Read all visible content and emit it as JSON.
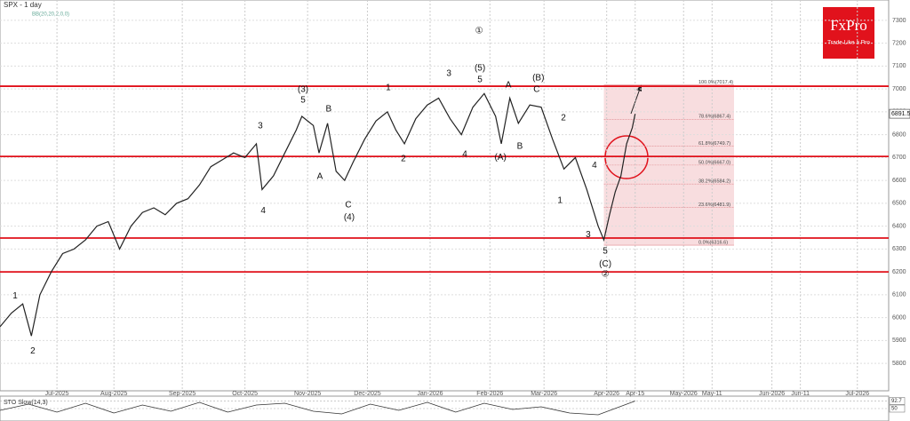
{
  "chart_data": {
    "type": "line",
    "title": "SPX - 1 day",
    "subtitle": "BB(20,20,2,0,0)",
    "brand": "FxPro",
    "tagline": "Trade Like a Pro",
    "series": [
      {
        "name": "SPX",
        "color": "#222222",
        "x": [
          0,
          4,
          8,
          11,
          14,
          18,
          22,
          26,
          30,
          34,
          38,
          42,
          46,
          50,
          54,
          58,
          62,
          66,
          70,
          74,
          78,
          82,
          86,
          90,
          92,
          96,
          100,
          104,
          106,
          110,
          112,
          115,
          118,
          121,
          124,
          128,
          132,
          136,
          139,
          142,
          146,
          150,
          154,
          158,
          162,
          166,
          170,
          174,
          176,
          179,
          182,
          186,
          190,
          194,
          198,
          202,
          206,
          210,
          212,
          214,
          216,
          218,
          220,
          222,
          223
        ],
        "values": [
          5960,
          6020,
          6060,
          5920,
          6100,
          6200,
          6280,
          6300,
          6340,
          6400,
          6420,
          6300,
          6400,
          6460,
          6480,
          6450,
          6500,
          6520,
          6580,
          6660,
          6690,
          6720,
          6700,
          6760,
          6560,
          6620,
          6720,
          6820,
          6880,
          6840,
          6720,
          6850,
          6640,
          6600,
          6680,
          6780,
          6860,
          6900,
          6820,
          6760,
          6870,
          6930,
          6960,
          6870,
          6800,
          6920,
          6980,
          6880,
          6760,
          6960,
          6850,
          6930,
          6920,
          6780,
          6650,
          6700,
          6560,
          6400,
          6340,
          6450,
          6550,
          6620,
          6760,
          6830,
          6891
        ]
      }
    ],
    "last_price": 6891.5,
    "levels": [
      7012,
      6705,
      6348,
      6200
    ],
    "fib_levels": [
      {
        "value": 7017.4,
        "label": "100.0%(7017.4)"
      },
      {
        "value": 6867.4,
        "label": "78.6%(6867.4)"
      },
      {
        "value": 6749.7,
        "label": "61.8%(6749.7)"
      },
      {
        "value": 6667.0,
        "label": "50.0%(6667.0)"
      },
      {
        "value": 6584.2,
        "label": "38.2%(6584.2)"
      },
      {
        "value": 6481.9,
        "label": "23.6%(6481.9)"
      },
      {
        "value": 6316.6,
        "label": "0.0%(6316.6)"
      }
    ],
    "annotations": [
      {
        "text": "1",
        "x": 5.3,
        "y": 6095
      },
      {
        "text": "2",
        "x": 11.5,
        "y": 5854
      },
      {
        "text": "3",
        "x": 91.4,
        "y": 6838
      },
      {
        "text": "4",
        "x": 92.4,
        "y": 6468
      },
      {
        "text": "(3)",
        "x": 106.4,
        "y": 6997
      },
      {
        "text": "5",
        "x": 106.4,
        "y": 6950
      },
      {
        "text": "A",
        "x": 112.3,
        "y": 6616
      },
      {
        "text": "B",
        "x": 115.4,
        "y": 6911
      },
      {
        "text": "C",
        "x": 122.3,
        "y": 6492
      },
      {
        "text": "(4)",
        "x": 122.6,
        "y": 6437
      },
      {
        "text": "1",
        "x": 136.3,
        "y": 7005
      },
      {
        "text": "2",
        "x": 141.6,
        "y": 6694
      },
      {
        "text": "3",
        "x": 157.6,
        "y": 7067
      },
      {
        "text": "4",
        "x": 163.2,
        "y": 6713
      },
      {
        "text": "①",
        "x": 168.2,
        "y": 7253
      },
      {
        "text": "(5)",
        "x": 168.5,
        "y": 7090
      },
      {
        "text": "5",
        "x": 168.5,
        "y": 7040
      },
      {
        "text": "A",
        "x": 178.5,
        "y": 7016
      },
      {
        "text": "(A)",
        "x": 175.7,
        "y": 6701
      },
      {
        "text": "B",
        "x": 182.5,
        "y": 6748
      },
      {
        "text": "(B)",
        "x": 189,
        "y": 7047
      },
      {
        "text": "C",
        "x": 188.4,
        "y": 6997
      },
      {
        "text": "2",
        "x": 197.8,
        "y": 6872
      },
      {
        "text": "1",
        "x": 196.6,
        "y": 6511
      },
      {
        "text": "4",
        "x": 208.7,
        "y": 6666
      },
      {
        "text": "3",
        "x": 206.5,
        "y": 6363
      },
      {
        "text": "5",
        "x": 212.5,
        "y": 6290
      },
      {
        "text": "(C)",
        "x": 212.5,
        "y": 6235
      },
      {
        "text": "②",
        "x": 212.5,
        "y": 6189
      }
    ],
    "xlim": [
      0,
      312
    ],
    "ylim": [
      5680,
      7389
    ],
    "xticks": [
      {
        "value": 20,
        "label": "Jul-2025"
      },
      {
        "value": 40,
        "label": "Aug-2025"
      },
      {
        "value": 64,
        "label": "Sep-2025"
      },
      {
        "value": 86,
        "label": "Oct-2025"
      },
      {
        "value": 108,
        "label": "Nov-2025"
      },
      {
        "value": 129,
        "label": "Dec-2025"
      },
      {
        "value": 151,
        "label": "Jan-2026"
      },
      {
        "value": 172,
        "label": "Feb-2026"
      },
      {
        "value": 191,
        "label": "Mar-2026"
      },
      {
        "value": 213,
        "label": "Apr-2026"
      },
      {
        "value": 223,
        "label": "Apr-15"
      },
      {
        "value": 240,
        "label": "May-2026"
      },
      {
        "value": 250,
        "label": "May-11"
      },
      {
        "value": 271,
        "label": "Jun-2026"
      },
      {
        "value": 281,
        "label": "Jun-11"
      },
      {
        "value": 301,
        "label": "Jul-2026"
      }
    ],
    "yticks": [
      5800,
      5900,
      6000,
      6100,
      6200,
      6300,
      6400,
      6500,
      6600,
      6700,
      6800,
      6900,
      7000,
      7100,
      7200,
      7300
    ],
    "grid": true,
    "oscillator": {
      "name": "STO Slow(14,3)",
      "ylim": [
        0,
        100
      ],
      "yticks": [
        92.7,
        50.0
      ],
      "x": [
        0,
        10,
        20,
        30,
        40,
        50,
        60,
        70,
        80,
        90,
        100,
        110,
        120,
        130,
        140,
        150,
        160,
        170,
        180,
        190,
        200,
        210,
        223
      ],
      "values": [
        40,
        75,
        30,
        80,
        25,
        70,
        35,
        85,
        30,
        70,
        80,
        35,
        20,
        75,
        40,
        85,
        30,
        80,
        45,
        60,
        25,
        15,
        92.7
      ]
    }
  }
}
